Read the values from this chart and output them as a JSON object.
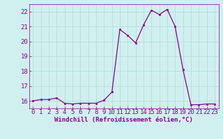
{
  "x": [
    0,
    1,
    2,
    3,
    4,
    5,
    6,
    7,
    8,
    9,
    10,
    11,
    12,
    13,
    14,
    15,
    16,
    17,
    18,
    19,
    20,
    21,
    22,
    23
  ],
  "y": [
    16.0,
    16.1,
    16.1,
    16.2,
    15.85,
    15.8,
    15.85,
    15.85,
    15.85,
    16.05,
    16.6,
    20.8,
    20.4,
    19.9,
    21.1,
    22.1,
    21.8,
    22.15,
    21.0,
    18.1,
    15.75,
    15.75,
    15.8,
    15.8
  ],
  "line_color": "#880088",
  "marker_color": "#880088",
  "bg_color": "#d0f0f0",
  "grid_color": "#b0d8d8",
  "xlabel": "Windchill (Refroidissement éolien,°C)",
  "xlabel_color": "#880088",
  "tick_color": "#880088",
  "ylim": [
    15.5,
    22.5
  ],
  "xlim": [
    -0.5,
    23.5
  ],
  "yticks": [
    16,
    17,
    18,
    19,
    20,
    21,
    22
  ],
  "xticks": [
    0,
    1,
    2,
    3,
    4,
    5,
    6,
    7,
    8,
    9,
    10,
    11,
    12,
    13,
    14,
    15,
    16,
    17,
    18,
    19,
    20,
    21,
    22,
    23
  ],
  "font_size": 6.5,
  "xlabel_fontsize": 6.5
}
